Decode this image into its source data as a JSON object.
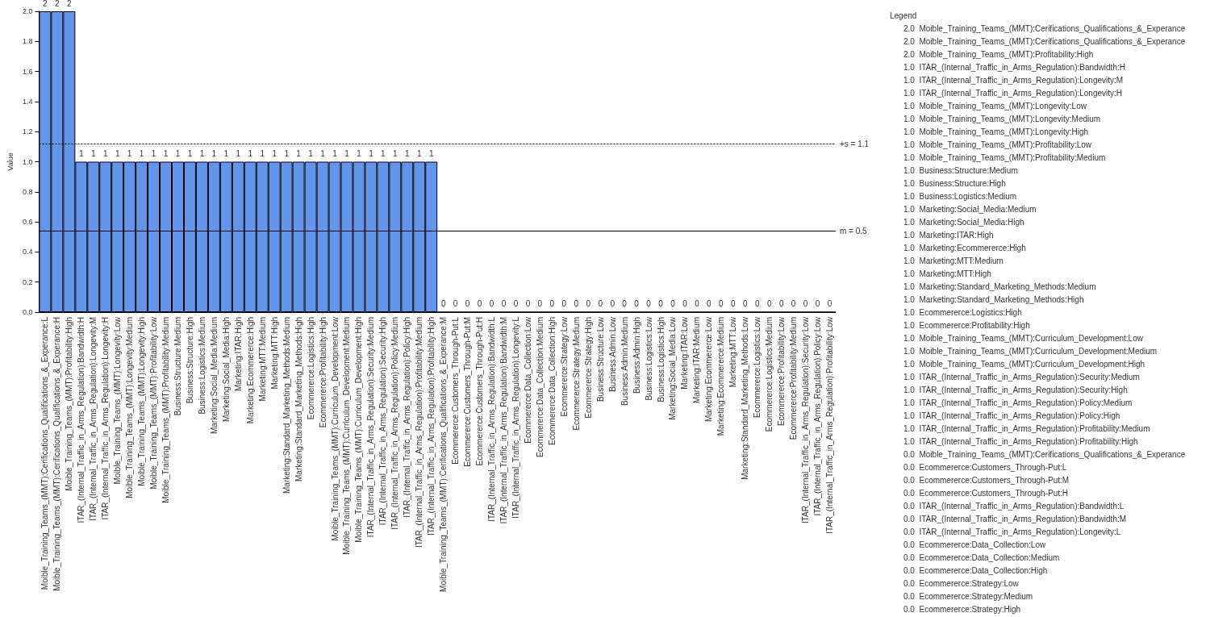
{
  "chart_data": {
    "type": "bar",
    "ylabel": "Value",
    "legend_title": "Legend",
    "categories": [
      "Moible_Training_Teams_(MMT):Cerifications_Qualifications_&_Experance:L",
      "Moible_Training_Teams_(MMT):Cerifications_Qualifications_&_Experance:H",
      "Moible_Training_Teams_(MMT):Profitability:High",
      "ITAR_(Internal_Traffic_in_Arms_Regulation):Bandwidth:H",
      "ITAR_(Internal_Traffic_in_Arms_Regulation):Longevity:M",
      "ITAR_(Internal_Traffic_in_Arms_Regulation):Longevity:H",
      "Moible_Training_Teams_(MMT):Longevity:Low",
      "Moible_Training_Teams_(MMT):Longevity:Medium",
      "Moible_Training_Teams_(MMT):Longevity:High",
      "Moible_Training_Teams_(MMT):Profitability:Low",
      "Moible_Training_Teams_(MMT):Profitability:Medium",
      "Business:Structure:Medium",
      "Business:Structure:High",
      "Business:Logistics:Medium",
      "Marketing:Social_Media:Medium",
      "Marketing:Social_Media:High",
      "Marketing:ITAR:High",
      "Marketing:Ecommererce:High",
      "Marketing:MTT:Medium",
      "Marketing:MTT:High",
      "Marketing:Standard_Marketing_Methods:Medium",
      "Marketing:Standard_Marketing_Methods:High",
      "Ecommererce:Logistics:High",
      "Ecommererce:Profitability:High",
      "Moible_Training_Teams_(MMT):Curriculum_Development:Low",
      "Moible_Training_Teams_(MMT):Curriculum_Development:Medium",
      "Moible_Training_Teams_(MMT):Curriculum_Development:High",
      "ITAR_(Internal_Traffic_in_Arms_Regulation):Security:Medium",
      "ITAR_(Internal_Traffic_in_Arms_Regulation):Security:High",
      "ITAR_(Internal_Traffic_in_Arms_Regulation):Policy:Medium",
      "ITAR_(Internal_Traffic_in_Arms_Regulation):Policy:High",
      "ITAR_(Internal_Traffic_in_Arms_Regulation):Profitability:Medium",
      "ITAR_(Internal_Traffic_in_Arms_Regulation):Profitability:High",
      "Moible_Training_Teams_(MMT):Cerifications_Qualifications_&_Experance:M",
      "Ecommererce:Customers_Through-Put:L",
      "Ecommererce:Customers_Through-Put:M",
      "Ecommererce:Customers_Through-Put:H",
      "ITAR_(Internal_Traffic_in_Arms_Regulation):Bandwidth:L",
      "ITAR_(Internal_Traffic_in_Arms_Regulation):Bandwidth:M",
      "ITAR_(Internal_Traffic_in_Arms_Regulation):Longevity:L",
      "Ecommererce:Data_Collection:Low",
      "Ecommererce:Data_Collection:Medium",
      "Ecommererce:Data_Collection:High",
      "Ecommererce:Strategy:Low",
      "Ecommererce:Strategy:Medium",
      "Ecommererce:Strategy:High",
      "Business:Structure:Low",
      "Business:Admin:Low",
      "Business:Admin:Medium",
      "Business:Admin:High",
      "Business:Logistics:Low",
      "Business:Logistics:High",
      "Marketing:Social_Media:Low",
      "Marketing:ITAR:Low",
      "Marketing:ITAR:Medium",
      "Marketing:Ecommererce:Low",
      "Marketing:Ecommererce:Medium",
      "Marketing:MTT:Low",
      "Marketing:Standard_Marketing_Methods:Low",
      "Ecommererce:Logistics:Low",
      "Ecommererce:Logistics:Medium",
      "Ecommererce:Profitability:Low",
      "Ecommererce:Profitability:Medium",
      "ITAR_(Internal_Traffic_in_Arms_Regulation):Security:Low",
      "ITAR_(Internal_Traffic_in_Arms_Regulation):Policy:Low",
      "ITAR_(Internal_Traffic_in_Arms_Regulation):Profitability:Low"
    ],
    "values": [
      2,
      2,
      2,
      1,
      1,
      1,
      1,
      1,
      1,
      1,
      1,
      1,
      1,
      1,
      1,
      1,
      1,
      1,
      1,
      1,
      1,
      1,
      1,
      1,
      1,
      1,
      1,
      1,
      1,
      1,
      1,
      1,
      1,
      0,
      0,
      0,
      0,
      0,
      0,
      0,
      0,
      0,
      0,
      0,
      0,
      0,
      0,
      0,
      0,
      0,
      0,
      0,
      0,
      0,
      0,
      0,
      0,
      0,
      0,
      0,
      0,
      0,
      0,
      0,
      0,
      0
    ],
    "color": "#6495ed",
    "data_labels": true,
    "ylim": [
      0,
      2
    ],
    "yticks": [
      {
        "value": 0,
        "label": "0.0"
      },
      0.2,
      0.4,
      0.6,
      0.8,
      {
        "value": 1,
        "label": "1.0"
      },
      1.2,
      1.4,
      1.6,
      1.8,
      {
        "value": 2,
        "label": "2.0"
      }
    ],
    "ref_lines": [
      {
        "axis": "y",
        "value": 1.12,
        "label": "+s = 1.1",
        "line_style": "dotted"
      },
      {
        "axis": "y",
        "value": 0.54,
        "label": "m = 0.5",
        "line_style": "solid"
      }
    ],
    "annotations": [
      "2.0  Moible_Training_Teams_(MMT):Cerifications_Qualifications_&_Experance",
      "2.0  Moible_Training_Teams_(MMT):Cerifications_Qualifications_&_Experance",
      "2.0  Moible_Training_Teams_(MMT):Profitability:High",
      "1.0  ITAR_(Internal_Traffic_in_Arms_Regulation):Bandwidth:H",
      "1.0  ITAR_(Internal_Traffic_in_Arms_Regulation):Longevity:M",
      "1.0  ITAR_(Internal_Traffic_in_Arms_Regulation):Longevity:H",
      "1.0  Moible_Training_Teams_(MMT):Longevity:Low",
      "1.0  Moible_Training_Teams_(MMT):Longevity:Medium",
      "1.0  Moible_Training_Teams_(MMT):Longevity:High",
      "1.0  Moible_Training_Teams_(MMT):Profitability:Low",
      "1.0  Moible_Training_Teams_(MMT):Profitability:Medium",
      "1.0  Business:Structure:Medium",
      "1.0  Business:Structure:High",
      "1.0  Business:Logistics:Medium",
      "1.0  Marketing:Social_Media:Medium",
      "1.0  Marketing:Social_Media:High",
      "1.0  Marketing:ITAR:High",
      "1.0  Marketing:Ecommererce:High",
      "1.0  Marketing:MTT:Medium",
      "1.0  Marketing:MTT:High",
      "1.0  Marketing:Standard_Marketing_Methods:Medium",
      "1.0  Marketing:Standard_Marketing_Methods:High",
      "1.0  Ecommererce:Logistics:High",
      "1.0  Ecommererce:Profitability:High",
      "1.0  Moible_Training_Teams_(MMT):Curriculum_Development:Low",
      "1.0  Moible_Training_Teams_(MMT):Curriculum_Development:Medium",
      "1.0  Moible_Training_Teams_(MMT):Curriculum_Development:High",
      "1.0  ITAR_(Internal_Traffic_in_Arms_Regulation):Security:Medium",
      "1.0  ITAR_(Internal_Traffic_in_Arms_Regulation):Security:High",
      "1.0  ITAR_(Internal_Traffic_in_Arms_Regulation):Policy:Medium",
      "1.0  ITAR_(Internal_Traffic_in_Arms_Regulation):Policy:High",
      "1.0  ITAR_(Internal_Traffic_in_Arms_Regulation):Profitability:Medium",
      "1.0  ITAR_(Internal_Traffic_in_Arms_Regulation):Profitability:High",
      "0.0  Moible_Training_Teams_(MMT):Cerifications_Qualifications_&_Experance",
      "0.0  Ecommererce:Customers_Through-Put:L",
      "0.0  Ecommererce:Customers_Through-Put:M",
      "0.0  Ecommererce:Customers_Through-Put:H",
      "0.0  ITAR_(Internal_Traffic_in_Arms_Regulation):Bandwidth:L",
      "0.0  ITAR_(Internal_Traffic_in_Arms_Regulation):Bandwidth:M",
      "0.0  ITAR_(Internal_Traffic_in_Arms_Regulation):Longevity:L",
      "0.0  Ecommererce:Data_Collection:Low",
      "0.0  Ecommererce:Data_Collection:Medium",
      "0.0  Ecommererce:Data_Collection:High",
      "0.0  Ecommererce:Strategy:Low",
      "0.0  Ecommererce:Strategy:Medium",
      "0.0  Ecommererce:Strategy:High"
    ]
  }
}
